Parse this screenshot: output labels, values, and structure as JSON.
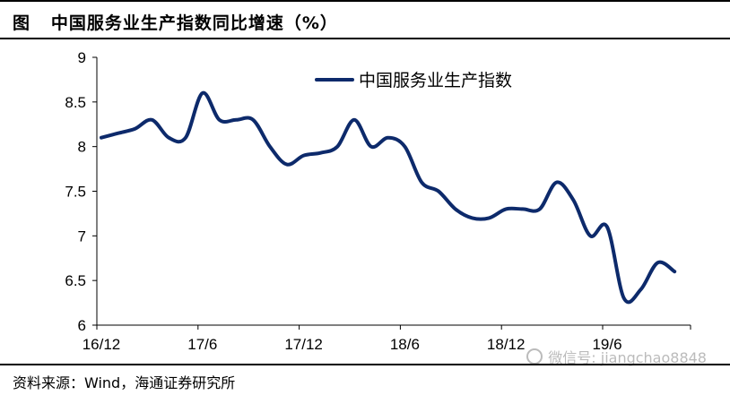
{
  "header": {
    "title": "图   中国服务业生产指数同比增速（%）"
  },
  "footer": {
    "source": "资料来源：Wind，海通证券研究所"
  },
  "watermark": {
    "text": "微信号: jiangchao8848",
    "icon": "wechat-icon"
  },
  "chart_data": {
    "type": "line",
    "title": "",
    "xlabel": "",
    "ylabel": "",
    "ylim": [
      6,
      9
    ],
    "yticks": [
      "9",
      "8.5",
      "8",
      "7.5",
      "7",
      "6.5",
      "6"
    ],
    "xticks": [
      "16/12",
      "17/6",
      "17/12",
      "18/6",
      "18/12",
      "19/6"
    ],
    "grid": false,
    "legend_position": "top-center",
    "line_color": "#0d2a6b",
    "x": [
      "16/12",
      "17/1",
      "17/2",
      "17/3",
      "17/4",
      "17/5",
      "17/6",
      "17/7",
      "17/8",
      "17/9",
      "17/10",
      "17/11",
      "17/12",
      "18/1",
      "18/2",
      "18/3",
      "18/4",
      "18/5",
      "18/6",
      "18/7",
      "18/8",
      "18/9",
      "18/10",
      "18/11",
      "18/12",
      "19/1",
      "19/2",
      "19/3",
      "19/4",
      "19/5",
      "19/6",
      "19/7",
      "19/8",
      "19/9",
      "19/10"
    ],
    "series": [
      {
        "name": "中国服务业生产指数",
        "values": [
          8.1,
          8.15,
          8.2,
          8.3,
          8.1,
          8.1,
          8.6,
          8.3,
          8.3,
          8.3,
          8.0,
          7.8,
          7.9,
          7.93,
          8.0,
          8.3,
          8.0,
          8.1,
          8.0,
          7.6,
          7.5,
          7.3,
          7.2,
          7.2,
          7.3,
          7.3,
          7.3,
          7.6,
          7.4,
          7.0,
          7.1,
          6.3,
          6.4,
          6.7,
          6.6
        ]
      }
    ]
  }
}
